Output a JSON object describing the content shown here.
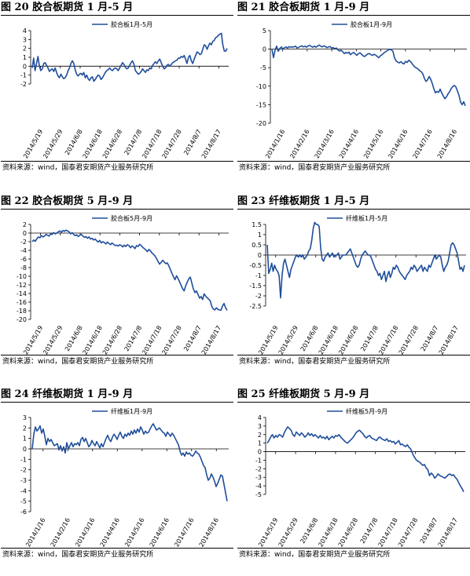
{
  "line_color": "#1f4e9b",
  "chart_data": [
    {
      "type": "line",
      "title": "图 20 胶合板期货 1 月-5 月",
      "source": "资料来源：wind，国泰君安期货产业服务研究所",
      "series": [
        {
          "name": "胶合板1月-5月",
          "values": [
            -0.2,
            0.9,
            -0.5,
            0.3,
            1.1,
            0.0,
            -0.5,
            -0.3,
            0.3,
            0.4,
            0.1,
            -0.2,
            -0.6,
            -0.4,
            -0.3,
            -0.6,
            -0.2,
            -0.7,
            -1.1,
            -1.3,
            -0.9,
            -1.2,
            -1.4,
            -1.3,
            -1.0,
            -0.5,
            -0.2,
            0.3,
            0.6,
            0.3,
            -0.4,
            -0.9,
            -1.1,
            -0.9,
            -0.8,
            -1.0,
            -0.7,
            -1.3,
            -1.0,
            -1.4,
            -1.6,
            -1.3,
            -1.2,
            -1.7,
            -1.5,
            -1.2,
            -1.0,
            -1.1,
            -1.5,
            -1.3,
            -1.0,
            -0.7,
            -0.5,
            -0.4,
            -0.2,
            -0.4,
            -0.5,
            -0.3,
            -0.2,
            -0.3,
            -0.5,
            -0.2,
            0.1,
            0.4,
            0.2,
            -0.1,
            -0.3,
            -0.2,
            0.1,
            0.4,
            0.6,
            0.2,
            -0.5,
            -0.7,
            -0.9,
            -0.8,
            -0.6,
            -0.3,
            -0.5,
            -0.7,
            -0.4,
            -0.5,
            -0.2,
            -0.3,
            0.1,
            0.3,
            0.5,
            0.3,
            0.6,
            0.8,
            0.4,
            0.0,
            -0.3,
            -0.2,
            0.1,
            0.2,
            0.0,
            0.2,
            0.4,
            0.5,
            0.6,
            0.7,
            0.9,
            0.9,
            1.1,
            1.0,
            1.2,
            0.8,
            0.3,
            1.0,
            1.2,
            0.6,
            0.3,
            0.8,
            1.2,
            1.6,
            1.5,
            1.3,
            1.4,
            1.9,
            2.4,
            2.3,
            1.9,
            2.3,
            2.6,
            2.4,
            2.8,
            2.9,
            3.2,
            3.3,
            3.5,
            3.6,
            3.7,
            2.4,
            1.7,
            1.7,
            2.0
          ],
          "max_jump": 0.8
        }
      ],
      "x_tick_labels": [
        "2014/5/19",
        "2014/5/29",
        "2014/6/8",
        "2014/6/18",
        "2014/6/28",
        "2014/7/8",
        "2014/7/18",
        "2014/7/28",
        "2014/8/7",
        "2014/8/17"
      ],
      "y_ticks": [
        -2,
        -1,
        0,
        1,
        2,
        3,
        4
      ],
      "ylim": [
        -2,
        4
      ],
      "y_labels_left": true
    },
    {
      "type": "line",
      "title": "图 21 胶合板期货 1 月-9 月",
      "source": "资料来源：wind，国泰君安期货产业服务研究所",
      "series": [
        {
          "name": "胶合板1月-9月",
          "values": [
            0.0,
            -2.3,
            -0.3,
            0.8,
            -0.6,
            0.2,
            0.6,
            0.0,
            0.4,
            0.6,
            0.3,
            0.7,
            0.5,
            0.6,
            0.6,
            0.8,
            0.3,
            0.5,
            0.7,
            0.9,
            0.6,
            0.8,
            0.5,
            0.9,
            1.0,
            0.7,
            0.5,
            0.8,
            0.5,
            0.8,
            1.1,
            0.8,
            0.6,
            0.9,
            0.7,
            0.4,
            0.6,
            0.7,
            0.3,
            0.4,
            0.1,
            0.3,
            -0.2,
            -0.5,
            -0.3,
            -0.7,
            -1.2,
            -0.9,
            -1.1,
            -0.8,
            -1.5,
            -1.1,
            -0.9,
            -1.3,
            -1.7,
            -1.2,
            -1.0,
            -1.4,
            -1.8,
            -2.0,
            -1.6,
            -1.3,
            -1.2,
            -1.5,
            -1.7,
            -1.4,
            -1.6,
            -2.0,
            -2.3,
            -1.8,
            -1.5,
            -1.1,
            -0.8,
            -0.5,
            -0.2,
            0.0,
            -0.2,
            -0.6,
            -2.4,
            -3.2,
            -3.5,
            -3.7,
            -3.4,
            -3.8,
            -4.0,
            -3.3,
            -3.6,
            -3.0,
            -3.3,
            -3.8,
            -4.4,
            -4.9,
            -5.1,
            -5.4,
            -5.8,
            -6.1,
            -6.7,
            -7.9,
            -8.7,
            -8.3,
            -7.4,
            -8.1,
            -9.3,
            -10.7,
            -11.8,
            -11.4,
            -11.7,
            -10.8,
            -11.8,
            -12.6,
            -13.4,
            -12.9,
            -12.1,
            -11.5,
            -10.7,
            -10.1,
            -9.8,
            -10.2,
            -11.3,
            -12.5,
            -14.3,
            -15.0,
            -14.2,
            -15.3
          ],
          "max_jump": 1.8
        }
      ],
      "x_tick_labels": [
        "2014/1/16",
        "2014/2/16",
        "2014/3/16",
        "2014/4/16",
        "2014/5/16",
        "2014/6/16",
        "2014/7/16",
        "2014/8/16"
      ],
      "y_ticks": [
        -20,
        -15,
        -10,
        -5,
        0,
        5
      ],
      "ylim": [
        -20,
        5
      ],
      "y_labels_left": true
    },
    {
      "type": "line",
      "title": "图 22 胶合板期货 5 月-9 月",
      "source": "资料来源：wind，国泰君安期货产业服务研究所",
      "series": [
        {
          "name": "胶合板5月-9月",
          "values": [
            -2.0,
            -1.6,
            -1.9,
            -1.3,
            -0.9,
            -1.1,
            -0.6,
            -0.9,
            -0.7,
            -0.3,
            -0.5,
            -0.7,
            -0.2,
            -0.3,
            0.1,
            -0.2,
            0.0,
            0.3,
            0.5,
            0.2,
            0.6,
            0.4,
            0.7,
            0.5,
            0.3,
            -0.2,
            0.1,
            -0.3,
            -0.6,
            -0.4,
            -0.8,
            -0.5,
            -0.3,
            -0.7,
            -1.0,
            -0.8,
            -1.2,
            -0.9,
            -1.4,
            -1.2,
            -1.6,
            -1.4,
            -1.8,
            -2.1,
            -1.7,
            -2.3,
            -2.0,
            -2.2,
            -2.5,
            -2.1,
            -2.4,
            -2.7,
            -2.3,
            -2.6,
            -2.9,
            -2.8,
            -3.0,
            -2.7,
            -2.9,
            -3.2,
            -2.8,
            -3.1,
            -2.7,
            -2.9,
            -3.4,
            -3.0,
            -3.2,
            -3.6,
            -2.9,
            -3.1,
            -2.6,
            -2.9,
            -3.3,
            -3.6,
            -3.9,
            -4.3,
            -3.8,
            -4.1,
            -4.6,
            -4.9,
            -5.3,
            -5.9,
            -6.6,
            -7.2,
            -6.8,
            -6.3,
            -6.7,
            -7.1,
            -6.9,
            -7.6,
            -8.4,
            -9.3,
            -10.1,
            -10.8,
            -9.9,
            -10.5,
            -11.3,
            -12.1,
            -12.9,
            -13.4,
            -12.2,
            -11.4,
            -10.6,
            -10.2,
            -11.6,
            -12.9,
            -13.8,
            -13.4,
            -14.2,
            -15.1,
            -14.7,
            -15.4,
            -14.1,
            -14.6,
            -15.0,
            -15.3,
            -15.7,
            -17.0,
            -17.6,
            -17.8,
            -17.3,
            -17.7,
            -17.8,
            -17.9,
            -16.9,
            -16.3,
            -17.3,
            -17.9
          ],
          "max_jump": 1.8
        }
      ],
      "x_tick_labels": [
        "2014/5/19",
        "2014/5/29",
        "2014/6/8",
        "2014/6/18",
        "2014/6/28",
        "2014/7/8",
        "2014/7/18",
        "2014/7/28",
        "2014/8/7",
        "2014/8/17"
      ],
      "y_ticks": [
        -20,
        -18,
        -16,
        -14,
        -12,
        -10,
        -8,
        -6,
        -4,
        -2,
        0,
        2
      ],
      "ylim": [
        -20,
        2
      ],
      "y_labels_left": true
    },
    {
      "type": "line",
      "title": "图 23 纤维板期货 1 月-5 月",
      "source": "资料来源：wind，国泰君安期货产业服务研究所",
      "series": [
        {
          "name": "纤维板1月-5月",
          "values": [
            0.5,
            -0.9,
            -0.7,
            -0.4,
            -0.8,
            -0.5,
            -0.7,
            -0.8,
            -1.0,
            -2.1,
            -1.0,
            -0.4,
            -0.2,
            -0.5,
            -0.8,
            -1.1,
            -0.7,
            -0.5,
            -0.3,
            -0.1,
            0.0,
            -0.1,
            0.0,
            -0.1,
            0.0,
            -0.2,
            -0.1,
            0.0,
            0.2,
            0.3,
            0.7,
            1.3,
            1.6,
            1.5,
            1.5,
            1.4,
            0.4,
            -0.2,
            -0.3,
            -0.1,
            0.0,
            0.1,
            -0.1,
            0.0,
            0.1,
            -0.1,
            0.0,
            0.0,
            0.1,
            -0.2,
            -0.1,
            0.0,
            0.0,
            0.0,
            0.1,
            0.2,
            0.3,
            0.1,
            -0.1,
            -0.3,
            -0.5,
            -0.6,
            -0.5,
            -0.2,
            0.0,
            0.1,
            0.2,
            0.1,
            0.0,
            0.0,
            -0.1,
            -0.3,
            -0.5,
            -0.7,
            -0.8,
            -1.0,
            -0.9,
            -1.2,
            -1.0,
            -0.8,
            -1.3,
            -1.0,
            -0.8,
            -1.1,
            -0.9,
            -0.6,
            -0.7,
            -0.5,
            -0.6,
            -0.8,
            -0.9,
            -1.0,
            -1.1,
            -1.2,
            -1.0,
            -0.9,
            -0.8,
            -0.6,
            -0.7,
            -0.5,
            -0.6,
            -0.8,
            -0.7,
            -0.6,
            -0.5,
            -0.8,
            -0.6,
            -0.7,
            -0.8,
            -0.5,
            -0.6,
            -0.4,
            -0.2,
            0.0,
            -0.2,
            -0.1,
            0.0,
            -0.1,
            -0.5,
            -0.8,
            -0.6,
            -0.5,
            -0.3,
            0.1,
            0.5,
            0.6,
            0.5,
            0.3,
            0.1,
            -0.3,
            -0.7,
            -0.6,
            -0.8,
            -0.5
          ],
          "max_jump": 0.7
        }
      ],
      "x_tick_labels": [
        "2014/5/19",
        "2014/5/29",
        "2014/6/8",
        "2014/6/18",
        "2014/6/28",
        "2014/7/8",
        "2014/7/18",
        "2014/7/28",
        "2014/8/7",
        "2014/8/17"
      ],
      "y_ticks": [
        -2.5,
        -2,
        -1.5,
        -1,
        -0.5,
        0,
        0.5,
        1,
        1.5
      ],
      "ylim": [
        -2.5,
        1.5
      ],
      "y_labels_left": false
    },
    {
      "type": "line",
      "title": "图 24 纤维板期货 1 月-9 月",
      "source": "资料来源：wind，国泰君安期货产业服务研究所",
      "series": [
        {
          "name": "纤维板1月-9月",
          "values": [
            0.0,
            1.4,
            2.1,
            1.7,
            1.9,
            2.2,
            1.5,
            1.9,
            1.2,
            0.4,
            1.0,
            0.7,
            0.9,
            0.6,
            0.3,
            0.4,
            0.5,
            -0.1,
            0.3,
            -0.2,
            0.2,
            -0.4,
            0.6,
            0.0,
            0.3,
            0.6,
            0.2,
            0.5,
            0.4,
            0.6,
            0.3,
            0.9,
            1.1,
            0.7,
            1.0,
            0.6,
            0.2,
            0.4,
            0.8,
            0.5,
            0.3,
            0.7,
            0.4,
            0.1,
            0.5,
            0.2,
            0.6,
            1.0,
            1.3,
            0.9,
            0.7,
            1.1,
            1.4,
            1.2,
            0.9,
            1.3,
            1.6,
            1.2,
            1.0,
            1.4,
            1.2,
            1.5,
            1.3,
            1.7,
            1.4,
            1.8,
            1.5,
            1.9,
            1.6,
            2.1,
            1.8,
            1.4,
            1.7,
            1.5,
            1.6,
            1.9,
            2.2,
            2.4,
            2.1,
            1.8,
            1.9,
            2.0,
            1.8,
            1.6,
            1.5,
            1.2,
            1.6,
            1.4,
            1.2,
            1.5,
            1.3,
            1.0,
            0.7,
            0.4,
            -0.2,
            -0.6,
            -0.4,
            -0.7,
            -0.3,
            -0.5,
            -0.4,
            -0.6,
            -0.7,
            -0.5,
            -0.2,
            -0.4,
            -0.5,
            -0.8,
            -1.2,
            -1.6,
            -1.8,
            -2.5,
            -3.0,
            -2.8,
            -2.4,
            -2.7,
            -3.1,
            -3.6,
            -3.3,
            -2.9,
            -2.5,
            -2.6,
            -3.4,
            -4.2,
            -5.0
          ],
          "max_jump": 0.9
        }
      ],
      "x_tick_labels": [
        "2014/1/16",
        "2014/2/16",
        "2014/3/16",
        "2014/4/16",
        "2014/5/16",
        "2014/6/16",
        "2014/7/16",
        "2014/8/16"
      ],
      "y_ticks": [
        -6,
        -5,
        -4,
        -3,
        -2,
        -1,
        0,
        1,
        2,
        3
      ],
      "ylim": [
        -6,
        3
      ],
      "y_labels_left": true
    },
    {
      "type": "line",
      "title": "图 25 纤维板期货 5 月-9 月",
      "source": "资料来源：wind，国泰君安期货产业服务研究所",
      "series": [
        {
          "name": "纤维板5月-9月",
          "values": [
            1.0,
            1.3,
            1.7,
            2.0,
            1.6,
            1.9,
            1.7,
            2.0,
            1.9,
            1.7,
            2.2,
            2.6,
            2.9,
            2.7,
            2.5,
            2.0,
            1.8,
            2.3,
            2.1,
            1.9,
            2.2,
            2.0,
            1.7,
            1.9,
            2.2,
            1.9,
            2.1,
            1.8,
            2.0,
            1.8,
            1.6,
            1.9,
            1.6,
            1.7,
            1.5,
            1.8,
            1.4,
            1.6,
            1.8,
            1.6,
            1.9,
            1.8,
            2.0,
            1.7,
            1.5,
            1.3,
            1.1,
            1.0,
            1.2,
            1.4,
            1.6,
            1.9,
            2.2,
            2.4,
            2.5,
            2.3,
            2.1,
            1.8,
            1.6,
            1.8,
            1.9,
            1.6,
            1.5,
            1.4,
            1.3,
            1.6,
            1.7,
            1.5,
            1.4,
            1.3,
            1.5,
            1.2,
            1.3,
            1.1,
            1.2,
            0.9,
            1.1,
            1.3,
            0.8,
            0.9,
            0.7,
            0.6,
            0.8,
            0.5,
            0.3,
            -0.2,
            -0.6,
            -0.9,
            -1.1,
            -1.2,
            -1.4,
            -1.6,
            -1.5,
            -1.9,
            -2.1,
            -2.8,
            -2.5,
            -2.7,
            -3.1,
            -2.9,
            -2.6,
            -2.8,
            -2.9,
            -3.0,
            -3.1,
            -2.9,
            -2.7,
            -2.6,
            -2.8,
            -2.7,
            -3.0,
            -3.2,
            -3.6,
            -4.0,
            -4.3,
            -4.7
          ],
          "max_jump": 0.7
        }
      ],
      "x_tick_labels": [
        "2014/5/19",
        "2014/5/29",
        "2014/6/8",
        "2014/6/18",
        "2014/6/28",
        "2014/7/8",
        "2014/7/18",
        "2014/7/28",
        "2014/8/7",
        "2014/8/17"
      ],
      "y_ticks": [
        -5,
        -4,
        -3,
        -2,
        -1,
        0,
        1,
        2,
        3,
        4
      ],
      "ylim": [
        -5,
        4
      ],
      "y_labels_left": true
    }
  ]
}
